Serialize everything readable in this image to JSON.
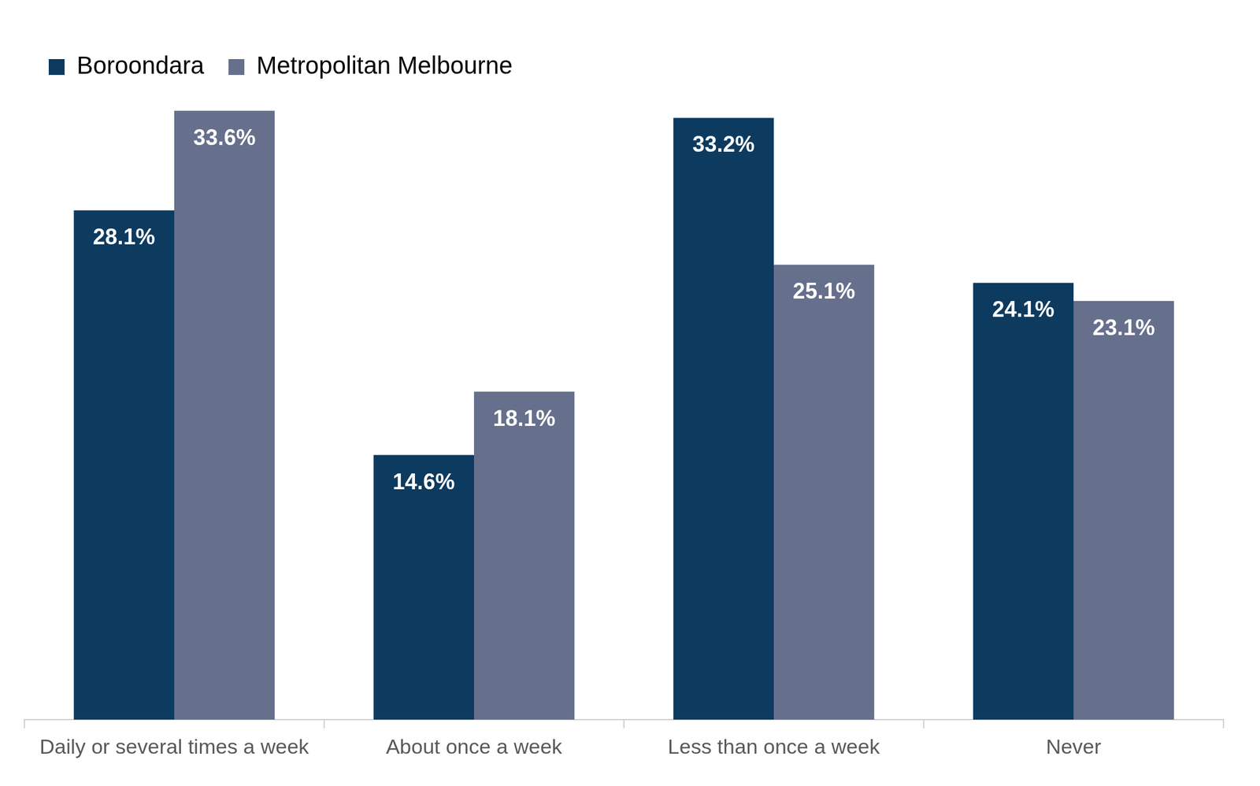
{
  "chart_data": {
    "type": "bar",
    "categories": [
      "Daily or several times a week",
      "About once a week",
      "Less than once a week",
      "Never"
    ],
    "series": [
      {
        "name": "Boroondara",
        "color": "#0d3a5f",
        "values": [
          28.1,
          14.6,
          33.2,
          24.1
        ],
        "value_labels": [
          "28.1%",
          "14.6%",
          "33.2%",
          "24.1%"
        ]
      },
      {
        "name": "Metropolitan Melbourne",
        "color": "#666f8c",
        "values": [
          33.6,
          18.1,
          25.1,
          23.1
        ],
        "value_labels": [
          "33.6%",
          "18.1%",
          "25.1%",
          "23.1%"
        ]
      }
    ],
    "ylim": [
      0,
      35
    ],
    "grid": false,
    "legend": "top-left",
    "data_labels": true,
    "tick_labels": "x"
  }
}
